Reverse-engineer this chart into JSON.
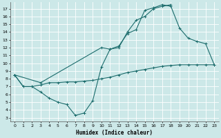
{
  "xlabel": "Humidex (Indice chaleur)",
  "bg_color": "#cce8e8",
  "grid_color": "#ffffff",
  "line_color": "#1a6b6b",
  "xlim": [
    -0.5,
    23.5
  ],
  "ylim": [
    2.5,
    17.8
  ],
  "xticks": [
    0,
    1,
    2,
    3,
    4,
    5,
    6,
    7,
    8,
    9,
    10,
    11,
    12,
    13,
    14,
    15,
    16,
    17,
    18,
    19,
    20,
    21,
    22,
    23
  ],
  "yticks": [
    3,
    4,
    5,
    6,
    7,
    8,
    9,
    10,
    11,
    12,
    13,
    14,
    15,
    16,
    17
  ],
  "line1_x": [
    0,
    1,
    2,
    3,
    4,
    5,
    6,
    7,
    8,
    9,
    10,
    11,
    12,
    13,
    14,
    15,
    16,
    17,
    18
  ],
  "line1_y": [
    8.5,
    7.0,
    7.0,
    6.3,
    5.5,
    5.0,
    4.7,
    3.3,
    3.6,
    5.2,
    9.5,
    11.8,
    12.0,
    14.0,
    15.5,
    16.0,
    17.0,
    17.3,
    17.5
  ],
  "line2_x": [
    0,
    1,
    2,
    3,
    4,
    5,
    6,
    7,
    8,
    9,
    10,
    11,
    12,
    13,
    14,
    15,
    16,
    17,
    18,
    19,
    20,
    21,
    22,
    23
  ],
  "line2_y": [
    8.5,
    7.0,
    7.0,
    7.2,
    7.5,
    7.5,
    7.6,
    7.6,
    7.7,
    7.8,
    8.0,
    8.2,
    8.5,
    8.8,
    9.0,
    9.2,
    9.4,
    9.6,
    9.7,
    9.8,
    9.8,
    9.8,
    9.8,
    9.8
  ],
  "line3_x": [
    0,
    3,
    10,
    11,
    12,
    13,
    14,
    15,
    16,
    17,
    18,
    19,
    20,
    21,
    22,
    23
  ],
  "line3_y": [
    8.5,
    7.5,
    12.0,
    11.8,
    12.2,
    13.8,
    14.3,
    16.8,
    17.1,
    17.5,
    17.3,
    14.5,
    13.2,
    12.8,
    12.5,
    9.8
  ]
}
